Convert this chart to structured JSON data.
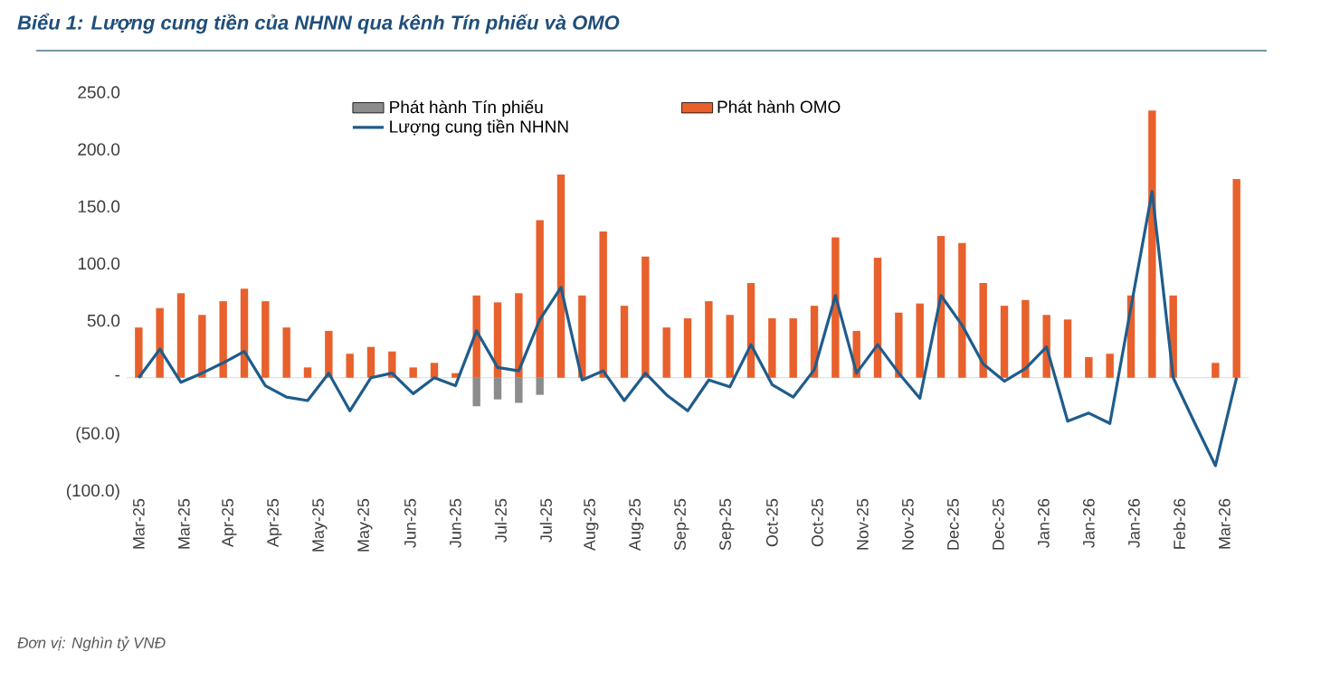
{
  "chart_data": {
    "type": "bar",
    "title": "Biểu 1: Lượng cung tiền của NHNN qua kênh Tín phiếu và OMO",
    "annotations": [
      "Đơn vị: Nghìn tỷ VNĐ"
    ],
    "x": [
      "2025-03-07",
      "2025-03-14",
      "2025-03-21",
      "2025-03-28",
      "2025-04-04",
      "2025-04-11",
      "2025-04-18",
      "2025-04-25",
      "2025-05-02",
      "2025-05-09",
      "2025-05-16",
      "2025-05-23",
      "2025-05-30",
      "2025-06-06",
      "2025-06-13",
      "2025-06-20",
      "2025-06-27",
      "2025-07-04",
      "2025-07-11",
      "2025-07-18",
      "2025-07-25",
      "2025-08-01",
      "2025-08-08",
      "2025-08-15",
      "2025-08-22",
      "2025-08-29",
      "2025-09-05",
      "2025-09-12",
      "2025-09-19",
      "2025-09-26",
      "2025-10-03",
      "2025-10-10",
      "2025-10-17",
      "2025-10-24",
      "2025-10-31",
      "2025-11-07",
      "2025-11-14",
      "2025-11-21",
      "2025-11-28",
      "2025-12-05",
      "2025-12-12",
      "2025-12-19",
      "2025-12-26",
      "2026-01-02",
      "2026-01-09",
      "2026-01-16",
      "2026-01-23",
      "2026-01-30",
      "2026-02-06",
      "2026-02-13",
      "2026-02-20",
      "2026-02-27",
      "2026-03-06"
    ],
    "series": [
      {
        "name": "Phát hành Tín phiếu",
        "color": "#8c8c8c",
        "values": [
          null,
          null,
          null,
          null,
          null,
          null,
          null,
          null,
          null,
          null,
          null,
          null,
          null,
          null,
          null,
          null,
          -25,
          -19,
          -22,
          -15,
          null,
          null,
          null,
          null,
          null,
          null,
          null,
          null,
          null,
          null,
          null,
          null,
          null,
          null,
          null,
          null,
          null,
          null,
          null,
          null,
          null,
          null,
          null,
          null,
          null,
          null,
          null,
          null,
          null,
          null,
          null,
          null,
          null
        ]
      },
      {
        "name": "Phát hành OMO",
        "type": "bar",
        "color": "#e8602c",
        "values": [
          44,
          61,
          74,
          55,
          67,
          78,
          67,
          44,
          9,
          41,
          21,
          27,
          23,
          9,
          13,
          4,
          72,
          66,
          74,
          138,
          178,
          72,
          128,
          63,
          106,
          44,
          52,
          67,
          55,
          83,
          52,
          52,
          63,
          123,
          41,
          105,
          57,
          65,
          124,
          118,
          83,
          63,
          68,
          55,
          51,
          18,
          21,
          72,
          234,
          72,
          null,
          13,
          174
        ]
      },
      {
        "name": "Lượng cung tiền NHNN",
        "type": "line",
        "color": "#1f5c8b",
        "values": [
          0,
          25,
          -4,
          4,
          13,
          23,
          -7,
          -17,
          -20,
          4,
          -29,
          0,
          4,
          -14,
          0,
          -7,
          41,
          9,
          6,
          51,
          79,
          -2,
          6,
          -20,
          4,
          -15,
          -29,
          -2,
          -8,
          29,
          -6,
          -17,
          7,
          72,
          4,
          29,
          4,
          -18,
          72,
          46,
          12,
          -3,
          8,
          27,
          -38,
          -31,
          -40,
          62,
          163,
          0,
          -39,
          -77,
          0
        ]
      }
    ],
    "xlim": [
      "2025-03-03",
      "2026-03-10"
    ],
    "xticks": [
      {
        "value": "2025-03-07",
        "label": "Mar-25"
      },
      {
        "value": "2025-03-22",
        "label": "Mar-25"
      },
      {
        "value": "2025-04-06",
        "label": "Apr-25"
      },
      {
        "value": "2025-04-21",
        "label": "Apr-25"
      },
      {
        "value": "2025-05-06",
        "label": "May-25"
      },
      {
        "value": "2025-05-21",
        "label": "May-25"
      },
      {
        "value": "2025-06-05",
        "label": "Jun-25"
      },
      {
        "value": "2025-06-20",
        "label": "Jun-25"
      },
      {
        "value": "2025-07-05",
        "label": "Jul-25"
      },
      {
        "value": "2025-07-20",
        "label": "Jul-25"
      },
      {
        "value": "2025-08-04",
        "label": "Aug-25"
      },
      {
        "value": "2025-08-19",
        "label": "Aug-25"
      },
      {
        "value": "2025-09-03",
        "label": "Sep-25"
      },
      {
        "value": "2025-09-18",
        "label": "Sep-25"
      },
      {
        "value": "2025-10-03",
        "label": "Oct-25"
      },
      {
        "value": "2025-10-18",
        "label": "Oct-25"
      },
      {
        "value": "2025-11-02",
        "label": "Nov-25"
      },
      {
        "value": "2025-11-17",
        "label": "Nov-25"
      },
      {
        "value": "2025-12-02",
        "label": "Dec-25"
      },
      {
        "value": "2025-12-17",
        "label": "Dec-25"
      },
      {
        "value": "2026-01-01",
        "label": "Jan-26"
      },
      {
        "value": "2026-01-16",
        "label": "Jan-26"
      },
      {
        "value": "2026-01-31",
        "label": "Jan-26"
      },
      {
        "value": "2026-02-15",
        "label": "Feb-26"
      },
      {
        "value": "2026-03-02",
        "label": "Mar-26"
      }
    ],
    "ylim": [
      -100,
      250
    ],
    "yticks": [
      {
        "value": -100,
        "label": "(100.0)"
      },
      {
        "value": -50,
        "label": "(50.0)"
      },
      {
        "value": 0,
        "label": "-"
      },
      {
        "value": 50,
        "label": "50.0"
      },
      {
        "value": 100,
        "label": "100.0"
      },
      {
        "value": 150,
        "label": "150.0"
      },
      {
        "value": 200,
        "label": "200.0"
      },
      {
        "value": 250,
        "label": "250.0"
      }
    ],
    "legend": "top",
    "marker": "none",
    "line_style": "solid"
  }
}
